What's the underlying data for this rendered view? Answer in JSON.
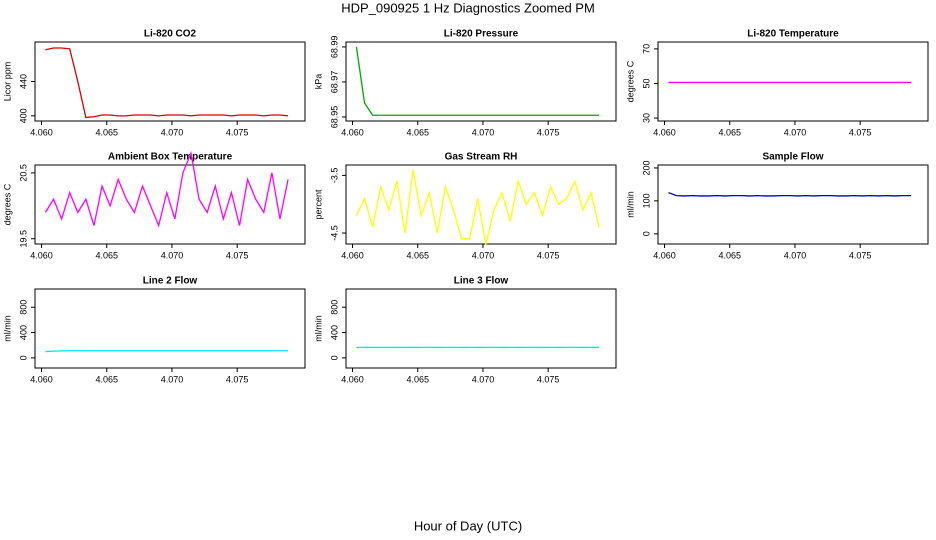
{
  "title": "HDP_090925  1 Hz Diagnostics Zoomed PM",
  "xlabel": "Hour of Day (UTC)",
  "chart_data": [
    {
      "type": "line",
      "title": "Li-820 CO2",
      "ylabel": "Licor ppm",
      "color": "#dd0000",
      "x": [
        4.0603,
        4.06092,
        4.06154,
        4.06216,
        4.06278,
        4.0634,
        4.06402,
        4.06464,
        4.06526,
        4.06588,
        4.0665,
        4.06712,
        4.06774,
        4.06836,
        4.06898,
        4.0696,
        4.07022,
        4.07084,
        4.07146,
        4.07208,
        4.0727,
        4.07332,
        4.07394,
        4.07456,
        4.07518,
        4.0758,
        4.07642,
        4.07704,
        4.07766,
        4.07828,
        4.0789
      ],
      "values": [
        477,
        479,
        479,
        478,
        440,
        398,
        399,
        401,
        401,
        400,
        400,
        401,
        401,
        401,
        400,
        401,
        401,
        401,
        400,
        401,
        401,
        401,
        401,
        400,
        401,
        401,
        401,
        400,
        401,
        401,
        400
      ],
      "xlim": [
        4.0595,
        4.0802
      ],
      "xticks": [
        {
          "value": 4.06,
          "label": "4.060"
        },
        {
          "value": 4.065,
          "label": "4.065"
        },
        {
          "value": 4.07,
          "label": "4.070"
        },
        {
          "value": 4.075,
          "label": "4.075"
        }
      ],
      "ylim": [
        394,
        486
      ],
      "yticks": [
        400,
        440
      ]
    },
    {
      "type": "line",
      "title": "Li-820 Pressure",
      "ylabel": "kPa",
      "color": "#00aa00",
      "x": [
        4.0603,
        4.06092,
        4.06154,
        4.06216,
        4.06278,
        4.0634,
        4.06402,
        4.06464,
        4.06526,
        4.06588,
        4.0665,
        4.06712,
        4.06774,
        4.06836,
        4.06898,
        4.0696,
        4.07022,
        4.07084,
        4.07146,
        4.07208,
        4.0727,
        4.07332,
        4.07394,
        4.07456,
        4.07518,
        4.0758,
        4.07642,
        4.07704,
        4.07766,
        4.07828,
        4.0789
      ],
      "values": [
        68.99,
        68.958,
        68.951,
        68.951,
        68.951,
        68.951,
        68.951,
        68.951,
        68.951,
        68.951,
        68.951,
        68.951,
        68.951,
        68.951,
        68.951,
        68.951,
        68.951,
        68.951,
        68.951,
        68.951,
        68.951,
        68.951,
        68.951,
        68.951,
        68.951,
        68.951,
        68.951,
        68.951,
        68.951,
        68.951,
        68.951
      ],
      "xlim": [
        4.0595,
        4.0802
      ],
      "xticks": [
        {
          "value": 4.06,
          "label": "4.060"
        },
        {
          "value": 4.065,
          "label": "4.065"
        },
        {
          "value": 4.07,
          "label": "4.070"
        },
        {
          "value": 4.075,
          "label": "4.075"
        }
      ],
      "ylim": [
        68.9477,
        68.9928
      ],
      "yticks": [
        68.95,
        68.97,
        68.99
      ]
    },
    {
      "type": "line",
      "title": "Li-820 Temperature",
      "ylabel": "degrees C",
      "color": "#ff00ff",
      "x": [
        4.0603,
        4.06092,
        4.06154,
        4.06216,
        4.06278,
        4.0634,
        4.06402,
        4.06464,
        4.06526,
        4.06588,
        4.0665,
        4.06712,
        4.06774,
        4.06836,
        4.06898,
        4.0696,
        4.07022,
        4.07084,
        4.07146,
        4.07208,
        4.0727,
        4.07332,
        4.07394,
        4.07456,
        4.07518,
        4.0758,
        4.07642,
        4.07704,
        4.07766,
        4.07828,
        4.0789
      ],
      "values": [
        50.6,
        50.6,
        50.6,
        50.6,
        50.6,
        50.6,
        50.6,
        50.6,
        50.6,
        50.6,
        50.6,
        50.6,
        50.6,
        50.6,
        50.6,
        50.6,
        50.6,
        50.6,
        50.6,
        50.6,
        50.6,
        50.6,
        50.6,
        50.6,
        50.6,
        50.6,
        50.6,
        50.6,
        50.6,
        50.6,
        50.6
      ],
      "xlim": [
        4.0595,
        4.0802
      ],
      "xticks": [
        {
          "value": 4.06,
          "label": "4.060"
        },
        {
          "value": 4.065,
          "label": "4.065"
        },
        {
          "value": 4.07,
          "label": "4.070"
        },
        {
          "value": 4.075,
          "label": "4.075"
        }
      ],
      "ylim": [
        28.3,
        74
      ],
      "yticks": [
        30,
        50,
        70
      ]
    },
    {
      "type": "line",
      "title": "Ambient Box Temperature",
      "ylabel": "degrees C",
      "color": "#ff00ff",
      "x": [
        4.0603,
        4.06092,
        4.06154,
        4.06216,
        4.06278,
        4.0634,
        4.06402,
        4.06464,
        4.06526,
        4.06588,
        4.0665,
        4.06712,
        4.06774,
        4.06836,
        4.06898,
        4.0696,
        4.07022,
        4.07084,
        4.07146,
        4.07208,
        4.0727,
        4.07332,
        4.07394,
        4.07456,
        4.07518,
        4.0758,
        4.07642,
        4.07704,
        4.07766,
        4.07828,
        4.0789
      ],
      "values": [
        19.9,
        20.1,
        19.8,
        20.2,
        19.9,
        20.1,
        19.7,
        20.3,
        20.0,
        20.4,
        20.1,
        19.9,
        20.3,
        20.0,
        19.7,
        20.2,
        19.8,
        20.5,
        20.8,
        20.1,
        19.9,
        20.3,
        19.8,
        20.2,
        19.7,
        20.4,
        20.1,
        19.9,
        20.5,
        19.8,
        20.4
      ],
      "xlim": [
        4.0595,
        4.0802
      ],
      "xticks": [
        {
          "value": 4.06,
          "label": "4.060"
        },
        {
          "value": 4.065,
          "label": "4.065"
        },
        {
          "value": 4.07,
          "label": "4.070"
        },
        {
          "value": 4.075,
          "label": "4.075"
        }
      ],
      "ylim": [
        19.42,
        20.62
      ],
      "yticks": [
        19.5,
        20.5
      ]
    },
    {
      "type": "line",
      "title": "Gas Stream RH",
      "ylabel": "percent",
      "color": "#ffff00",
      "x": [
        4.0603,
        4.06092,
        4.06154,
        4.06216,
        4.06278,
        4.0634,
        4.06402,
        4.06464,
        4.06526,
        4.06588,
        4.0665,
        4.06712,
        4.06774,
        4.06836,
        4.06898,
        4.0696,
        4.07022,
        4.07084,
        4.07146,
        4.07208,
        4.0727,
        4.07332,
        4.07394,
        4.07456,
        4.07518,
        4.0758,
        4.07642,
        4.07704,
        4.07766,
        4.07828,
        4.0789
      ],
      "values": [
        -4.2,
        -3.9,
        -4.4,
        -3.7,
        -4.1,
        -3.6,
        -4.5,
        -3.4,
        -4.2,
        -3.8,
        -4.5,
        -3.7,
        -4.1,
        -4.6,
        -4.6,
        -3.9,
        -4.7,
        -4.1,
        -3.8,
        -4.3,
        -3.6,
        -4.0,
        -3.8,
        -4.2,
        -3.7,
        -4.0,
        -3.9,
        -3.6,
        -4.1,
        -3.8,
        -4.4
      ],
      "xlim": [
        4.0595,
        4.0802
      ],
      "xticks": [
        {
          "value": 4.06,
          "label": "4.060"
        },
        {
          "value": 4.065,
          "label": "4.065"
        },
        {
          "value": 4.07,
          "label": "4.070"
        },
        {
          "value": 4.075,
          "label": "4.075"
        }
      ],
      "ylim": [
        -4.69,
        -3.32
      ],
      "yticks": [
        -4.5,
        -3.5
      ]
    },
    {
      "type": "line",
      "title": "Sample Flow",
      "ylabel": "ml/min",
      "color": "#0000cc",
      "x": [
        4.0603,
        4.06092,
        4.06154,
        4.06216,
        4.06278,
        4.0634,
        4.06402,
        4.06464,
        4.06526,
        4.06588,
        4.0665,
        4.06712,
        4.06774,
        4.06836,
        4.06898,
        4.0696,
        4.07022,
        4.07084,
        4.07146,
        4.07208,
        4.0727,
        4.07332,
        4.07394,
        4.07456,
        4.07518,
        4.0758,
        4.07642,
        4.07704,
        4.07766,
        4.07828,
        4.0789
      ],
      "values": [
        125,
        116,
        115,
        116,
        115,
        115,
        116,
        115,
        116,
        116,
        115,
        116,
        115,
        115,
        116,
        116,
        115,
        116,
        115,
        116,
        116,
        115,
        115,
        116,
        115,
        116,
        115,
        116,
        115,
        116,
        116
      ],
      "xlim": [
        4.0595,
        4.0802
      ],
      "xticks": [
        {
          "value": 4.06,
          "label": "4.060"
        },
        {
          "value": 4.065,
          "label": "4.065"
        },
        {
          "value": 4.07,
          "label": "4.070"
        },
        {
          "value": 4.075,
          "label": "4.075"
        }
      ],
      "ylim": [
        -31,
        209
      ],
      "yticks": [
        0,
        100,
        200
      ]
    },
    {
      "type": "line",
      "title": "Line 2 Flow",
      "ylabel": "ml/min",
      "color": "#00e5ee",
      "x": [
        4.0603,
        4.06092,
        4.06154,
        4.06216,
        4.06278,
        4.0634,
        4.06402,
        4.06464,
        4.06526,
        4.06588,
        4.0665,
        4.06712,
        4.06774,
        4.06836,
        4.06898,
        4.0696,
        4.07022,
        4.07084,
        4.07146,
        4.07208,
        4.0727,
        4.07332,
        4.07394,
        4.07456,
        4.07518,
        4.0758,
        4.07642,
        4.07704,
        4.07766,
        4.07828,
        4.0789
      ],
      "values": [
        100,
        106,
        110,
        112,
        113,
        113,
        112,
        113,
        113,
        112,
        113,
        113,
        112,
        113,
        113,
        113,
        112,
        113,
        113,
        112,
        113,
        113,
        112,
        113,
        113,
        112,
        113,
        113,
        112,
        113,
        113
      ],
      "xlim": [
        4.0595,
        4.0802
      ],
      "xticks": [
        {
          "value": 4.06,
          "label": "4.060"
        },
        {
          "value": 4.065,
          "label": "4.065"
        },
        {
          "value": 4.07,
          "label": "4.070"
        },
        {
          "value": 4.075,
          "label": "4.075"
        }
      ],
      "ylim": [
        -160,
        1088
      ],
      "yticks": [
        0,
        400,
        800
      ]
    },
    {
      "type": "line",
      "title": "Line 3 Flow",
      "ylabel": "ml/min",
      "color": "#00e5ee",
      "x": [
        4.0603,
        4.06092,
        4.06154,
        4.06216,
        4.06278,
        4.0634,
        4.06402,
        4.06464,
        4.06526,
        4.06588,
        4.0665,
        4.06712,
        4.06774,
        4.06836,
        4.06898,
        4.0696,
        4.07022,
        4.07084,
        4.07146,
        4.07208,
        4.0727,
        4.07332,
        4.07394,
        4.07456,
        4.07518,
        4.0758,
        4.07642,
        4.07704,
        4.07766,
        4.07828,
        4.0789
      ],
      "values": [
        165,
        166,
        165,
        166,
        166,
        165,
        166,
        165,
        166,
        166,
        165,
        166,
        166,
        165,
        166,
        165,
        166,
        166,
        165,
        166,
        165,
        166,
        166,
        165,
        166,
        165,
        166,
        166,
        165,
        166,
        165
      ],
      "xlim": [
        4.0595,
        4.0802
      ],
      "xticks": [
        {
          "value": 4.06,
          "label": "4.060"
        },
        {
          "value": 4.065,
          "label": "4.065"
        },
        {
          "value": 4.07,
          "label": "4.070"
        },
        {
          "value": 4.075,
          "label": "4.075"
        }
      ],
      "ylim": [
        -160,
        1088
      ],
      "yticks": [
        0,
        400,
        800
      ]
    }
  ]
}
